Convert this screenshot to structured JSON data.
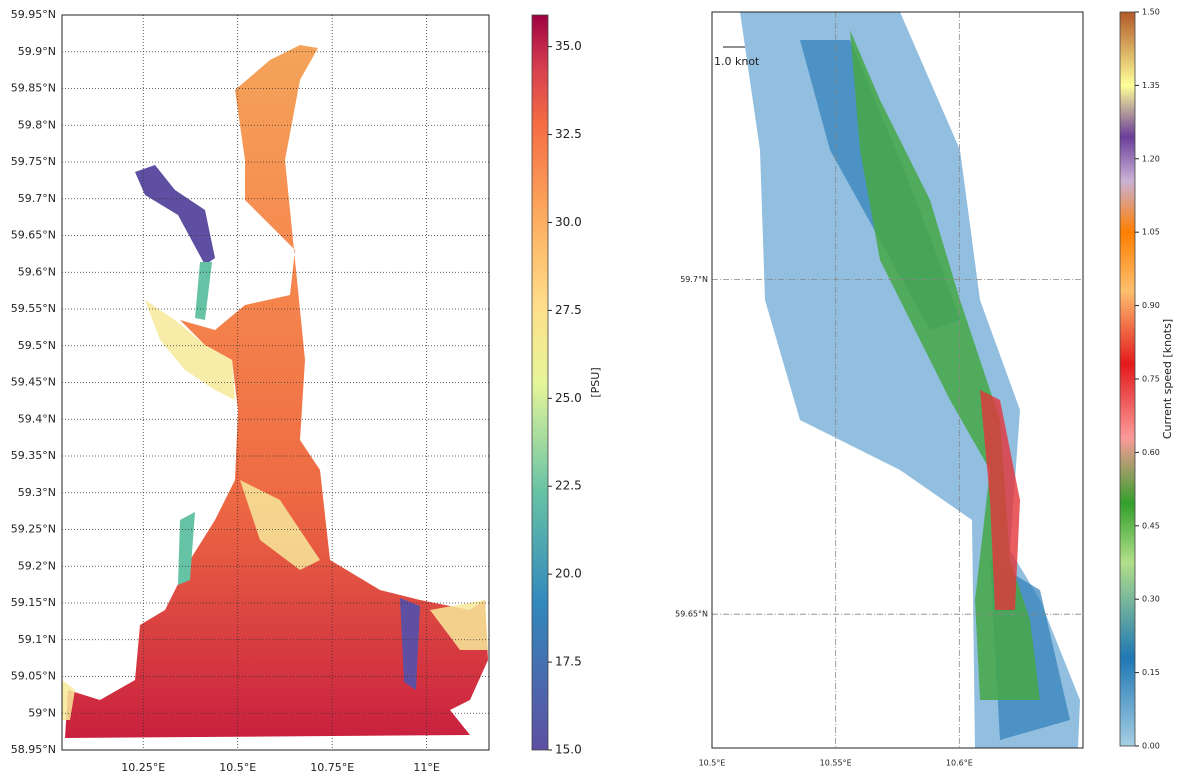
{
  "panels": [
    {
      "xlim": [
        10.035,
        11.165
      ],
      "ylim": [
        58.95,
        59.95
      ],
      "xticks": [
        {
          "value": 10.25,
          "label": "10.25°E"
        },
        {
          "value": 10.5,
          "label": "10.5°E"
        },
        {
          "value": 10.75,
          "label": "10.75°E"
        },
        {
          "value": 11,
          "label": "11°E"
        }
      ],
      "yticks": [
        {
          "value": 58.95,
          "label": "58.95°N"
        },
        {
          "value": 59,
          "label": "59°N"
        },
        {
          "value": 59.05,
          "label": "59.05°N"
        },
        {
          "value": 59.1,
          "label": "59.1°N"
        },
        {
          "value": 59.15,
          "label": "59.15°N"
        },
        {
          "value": 59.2,
          "label": "59.2°N"
        },
        {
          "value": 59.25,
          "label": "59.25°N"
        },
        {
          "value": 59.3,
          "label": "59.3°N"
        },
        {
          "value": 59.35,
          "label": "59.35°N"
        },
        {
          "value": 59.4,
          "label": "59.4°N"
        },
        {
          "value": 59.45,
          "label": "59.45°N"
        },
        {
          "value": 59.5,
          "label": "59.5°N"
        },
        {
          "value": 59.55,
          "label": "59.55°N"
        },
        {
          "value": 59.6,
          "label": "59.6°N"
        },
        {
          "value": 59.65,
          "label": "59.65°N"
        },
        {
          "value": 59.7,
          "label": "59.7°N"
        },
        {
          "value": 59.75,
          "label": "59.75°N"
        },
        {
          "value": 59.8,
          "label": "59.8°N"
        },
        {
          "value": 59.85,
          "label": "59.85°N"
        },
        {
          "value": 59.9,
          "label": "59.9°N"
        },
        {
          "value": 59.95,
          "label": "59.95°N"
        }
      ],
      "colorbar": {
        "label": "[PSU]",
        "lim": [
          15,
          35.9
        ],
        "ticks": [
          {
            "value": 15,
            "label": "15.0"
          },
          17.5,
          {
            "value": 20,
            "label": "20.0"
          },
          22.5,
          {
            "value": 25,
            "label": "25.0"
          },
          27.5,
          {
            "value": 30,
            "label": "30.0"
          },
          32.5,
          {
            "value": 35,
            "label": "35.0"
          }
        ]
      }
    },
    {
      "xlim": [
        10.5,
        10.65
      ],
      "ylim": [
        59.63,
        59.74
      ],
      "annotation": "1.0 knot",
      "xticks": [
        {
          "value": 10.5,
          "label": "10.5°E"
        },
        {
          "value": 10.55,
          "label": "10.55°E"
        },
        {
          "value": 10.6,
          "label": "10.6°E"
        }
      ],
      "yticks": [
        {
          "value": 59.65,
          "label": "59.65°N"
        },
        {
          "value": 59.7,
          "label": "59.7°N"
        }
      ],
      "colorbar": {
        "label": "Current speed [knots]",
        "lim": [
          0,
          1.5
        ],
        "ticks": [
          {
            "value": 0,
            "label": "0.00"
          },
          0.15,
          {
            "value": 0.3,
            "label": "0.30"
          },
          0.45,
          {
            "value": 0.6,
            "label": "0.60"
          },
          0.75,
          {
            "value": 0.9,
            "label": "0.90"
          },
          1.05,
          {
            "value": 1.2,
            "label": "1.20"
          },
          1.35,
          {
            "value": 1.5,
            "label": "1.50"
          }
        ]
      }
    }
  ]
}
